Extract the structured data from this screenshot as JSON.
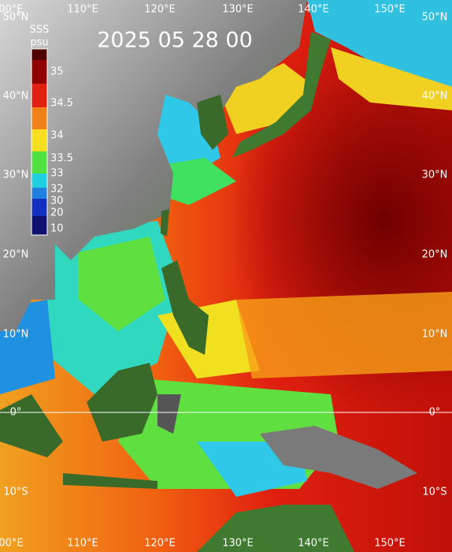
{
  "title": "2025 05 28 00",
  "colorbar": {
    "label_top": "SSS",
    "label_bottom": "psu",
    "ticks": [
      "35",
      "34.5",
      "34",
      "33.5",
      "33",
      "32",
      "30",
      "20",
      "10"
    ]
  },
  "lon_labels": [
    "00°E",
    "110°E",
    "120°E",
    "130°E",
    "140°E",
    "150°E"
  ],
  "lat_labels": [
    "50°N",
    "40°N",
    "30°N",
    "20°N",
    "10°N",
    "0°",
    "10°S"
  ]
}
